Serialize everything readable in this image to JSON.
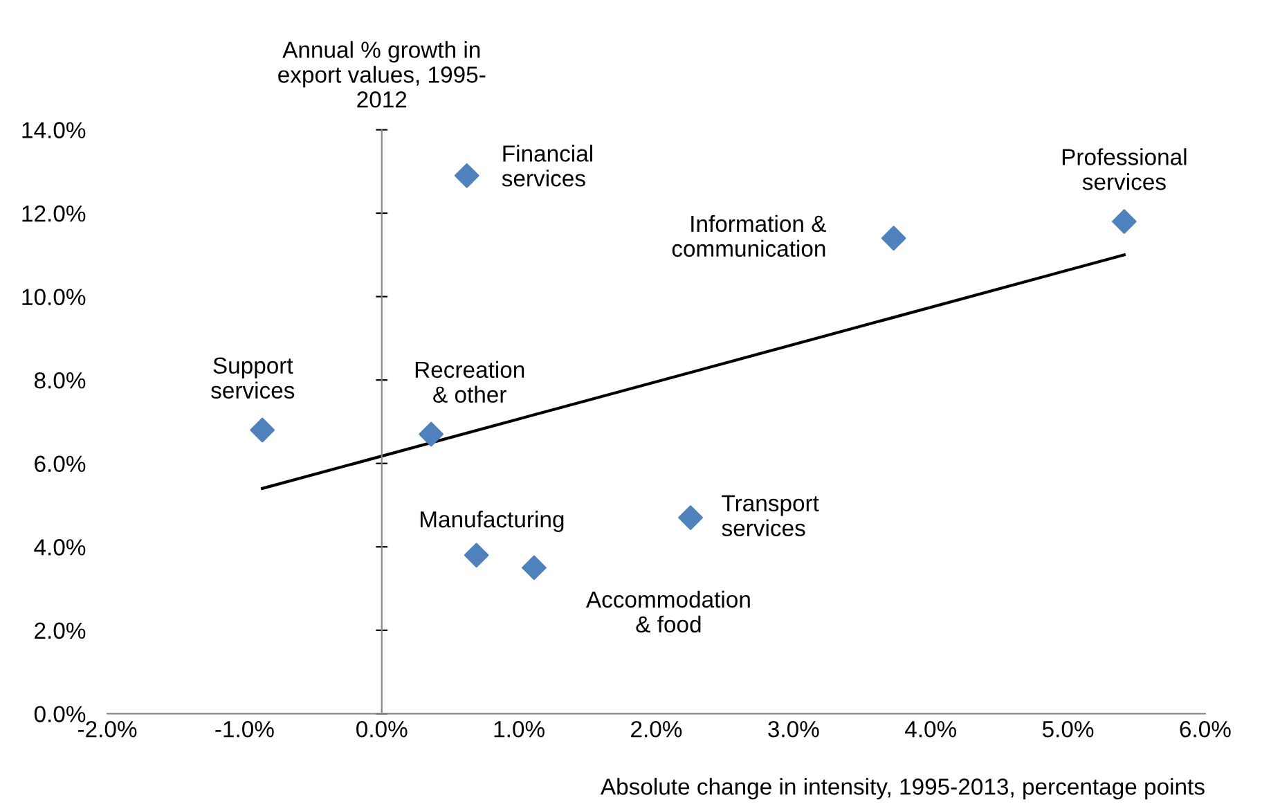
{
  "chart_data": {
    "type": "scatter",
    "xlabel": "Absolute change in intensity, 1995-2013, percentage points",
    "ylabel": "Annual % growth in\nexport values, 1995-\n2012",
    "xlim": [
      -2,
      6
    ],
    "ylim": [
      0,
      14
    ],
    "xticks": [
      {
        "value": -2,
        "label": "-2.0%"
      },
      {
        "value": -1,
        "label": "-1.0%"
      },
      {
        "value": 0,
        "label": "0.0%"
      },
      {
        "value": 1,
        "label": "1.0%"
      },
      {
        "value": 2,
        "label": "2.0%"
      },
      {
        "value": 3,
        "label": "3.0%"
      },
      {
        "value": 4,
        "label": "4.0%"
      },
      {
        "value": 5,
        "label": "5.0%"
      },
      {
        "value": 6,
        "label": "6.0%"
      }
    ],
    "yticks": [
      {
        "value": 0,
        "label": "0.0%"
      },
      {
        "value": 2,
        "label": "2.0%"
      },
      {
        "value": 4,
        "label": "4.0%"
      },
      {
        "value": 6,
        "label": "6.0%"
      },
      {
        "value": 8,
        "label": "8.0%"
      },
      {
        "value": 10,
        "label": "10.0%"
      },
      {
        "value": 12,
        "label": "12.0%"
      },
      {
        "value": 14,
        "label": "14.0%"
      }
    ],
    "legend": false,
    "series": [
      {
        "marker": "diamond",
        "color": "#4f81bd",
        "x": [
          -0.87,
          0.36,
          0.62,
          0.69,
          1.11,
          2.25,
          3.73,
          5.41
        ],
        "values": [
          6.8,
          6.7,
          12.9,
          3.8,
          3.5,
          4.7,
          11.4,
          11.8
        ]
      },
      {
        "type": "line",
        "marker": "none",
        "color": "#000000",
        "x": [
          -0.87,
          5.41
        ],
        "values": [
          5.4,
          11.0
        ]
      }
    ],
    "annotations": [
      {
        "text": "Support\nservices",
        "x": -0.87,
        "y": 6.8
      },
      {
        "text": "Recreation\n& other",
        "x": 0.36,
        "y": 6.7
      },
      {
        "text": "Financial\nservices",
        "x": 0.62,
        "y": 12.9
      },
      {
        "text": "Manufacturing",
        "x": 0.69,
        "y": 3.8
      },
      {
        "text": "Accommodation\n& food",
        "x": 1.11,
        "y": 3.5
      },
      {
        "text": "Transport\nservices",
        "x": 2.25,
        "y": 4.7
      },
      {
        "text": "Information &\ncommunication",
        "x": 3.73,
        "y": 11.4
      },
      {
        "text": "Professional\nservices",
        "x": 5.41,
        "y": 11.8
      }
    ]
  }
}
